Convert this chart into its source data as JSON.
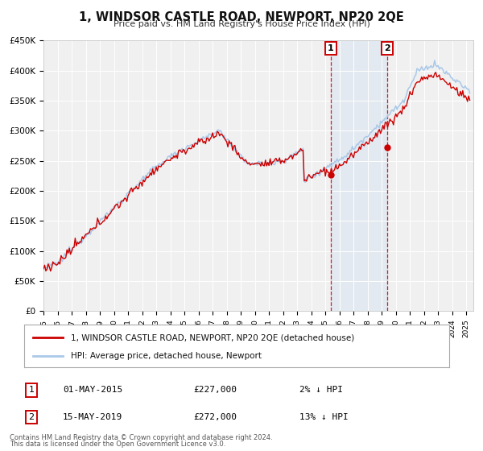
{
  "title": "1, WINDSOR CASTLE ROAD, NEWPORT, NP20 2QE",
  "subtitle": "Price paid vs. HM Land Registry's House Price Index (HPI)",
  "ylim": [
    0,
    450000
  ],
  "yticks": [
    0,
    50000,
    100000,
    150000,
    200000,
    250000,
    300000,
    350000,
    400000,
    450000
  ],
  "ytick_labels": [
    "£0",
    "£50K",
    "£100K",
    "£150K",
    "£200K",
    "£250K",
    "£300K",
    "£350K",
    "£400K",
    "£450K"
  ],
  "xlim_start": 1995.0,
  "xlim_end": 2025.5,
  "hpi_color": "#aac8e8",
  "price_color": "#cc0000",
  "background_color": "#ffffff",
  "plot_bg_color": "#f0f0f0",
  "grid_color": "#ffffff",
  "shade_color": "#c8ddf0",
  "sale1_x": 2015.37,
  "sale1_y": 227000,
  "sale2_x": 2019.37,
  "sale2_y": 272000,
  "sale1_label": "01-MAY-2015",
  "sale1_price": "£227,000",
  "sale1_hpi": "2% ↓ HPI",
  "sale2_label": "15-MAY-2019",
  "sale2_price": "£272,000",
  "sale2_hpi": "13% ↓ HPI",
  "legend_line1": "1, WINDSOR CASTLE ROAD, NEWPORT, NP20 2QE (detached house)",
  "legend_line2": "HPI: Average price, detached house, Newport",
  "footer1": "Contains HM Land Registry data © Crown copyright and database right 2024.",
  "footer2": "This data is licensed under the Open Government Licence v3.0."
}
